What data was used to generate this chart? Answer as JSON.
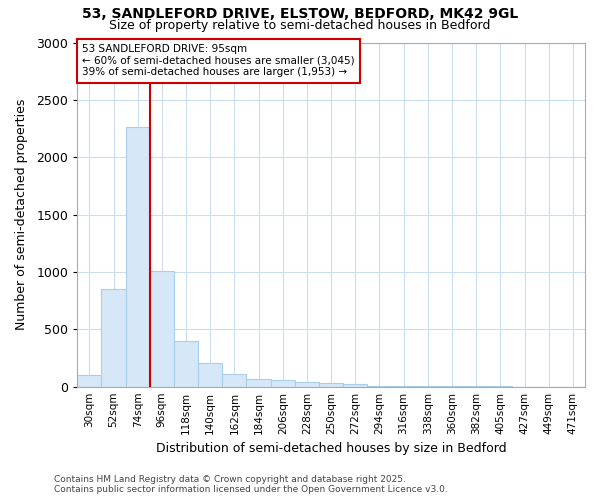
{
  "title_line1": "53, SANDLEFORD DRIVE, ELSTOW, BEDFORD, MK42 9GL",
  "title_line2": "Size of property relative to semi-detached houses in Bedford",
  "xlabel": "Distribution of semi-detached houses by size in Bedford",
  "ylabel": "Number of semi-detached properties",
  "categories": [
    "30sqm",
    "52sqm",
    "74sqm",
    "96sqm",
    "118sqm",
    "140sqm",
    "162sqm",
    "184sqm",
    "206sqm",
    "228sqm",
    "250sqm",
    "272sqm",
    "294sqm",
    "316sqm",
    "338sqm",
    "360sqm",
    "382sqm",
    "405sqm",
    "427sqm",
    "449sqm",
    "471sqm"
  ],
  "values": [
    100,
    850,
    2260,
    1010,
    400,
    210,
    110,
    70,
    55,
    45,
    35,
    20,
    10,
    5,
    4,
    3,
    2,
    2,
    1,
    1,
    1
  ],
  "bar_color": "#d6e8f7",
  "bar_edge_color": "#aacde8",
  "property_line_color": "#cc0000",
  "annotation_line1": "53 SANDLEFORD DRIVE: 95sqm",
  "annotation_line2": "← 60% of semi-detached houses are smaller (3,045)",
  "annotation_line3": "39% of semi-detached houses are larger (1,953) →",
  "annotation_box_facecolor": "#ffffff",
  "annotation_box_edgecolor": "#cc0000",
  "ylim": [
    0,
    3000
  ],
  "yticks": [
    0,
    500,
    1000,
    1500,
    2000,
    2500,
    3000
  ],
  "background_color": "#ffffff",
  "plot_background": "#ffffff",
  "grid_color": "#ccddee",
  "footer_line1": "Contains HM Land Registry data © Crown copyright and database right 2025.",
  "footer_line2": "Contains public sector information licensed under the Open Government Licence v3.0."
}
